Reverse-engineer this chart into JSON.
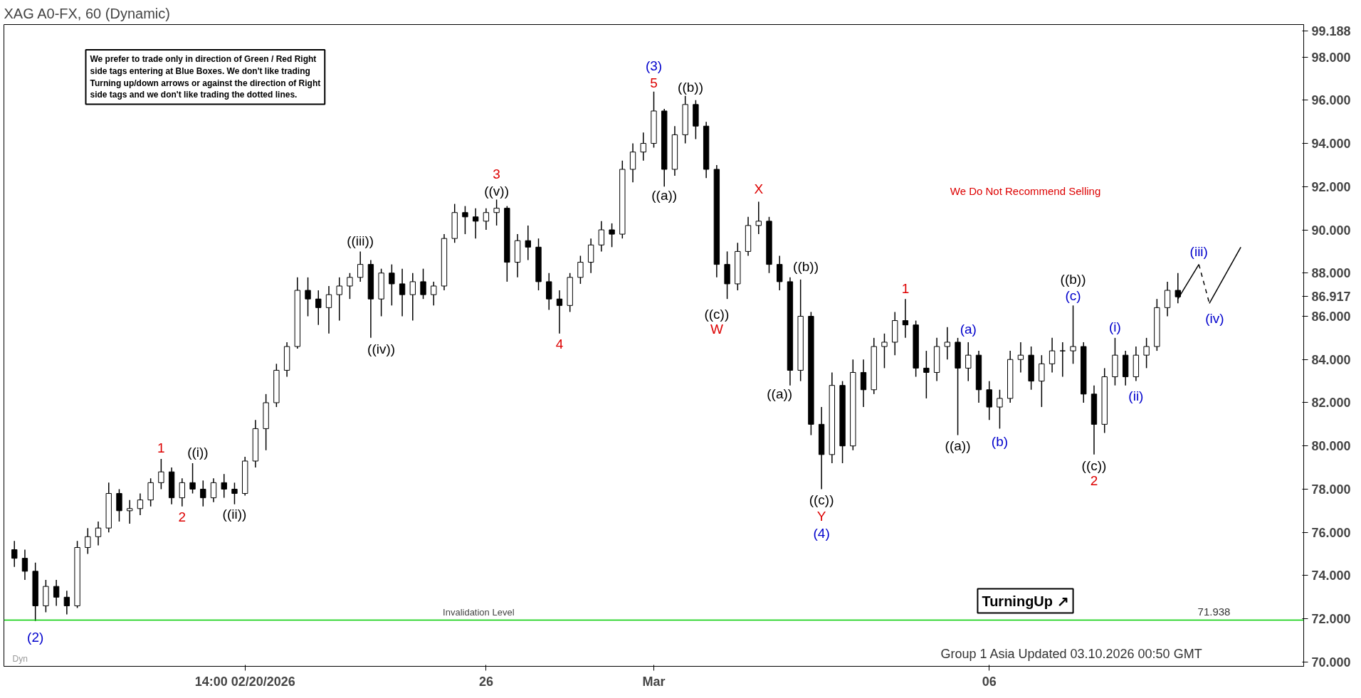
{
  "chart_data": {
    "type": "candlestick",
    "title": "XAG A0-FX, 60 (Dynamic)",
    "categories": [
      null,
      null,
      null,
      null,
      null,
      null,
      null,
      null,
      null,
      null,
      null,
      null,
      null,
      null,
      null,
      null,
      null,
      null,
      null,
      null,
      null,
      null,
      "14:00 02/20/2026",
      null,
      null,
      null,
      null,
      null,
      null,
      null,
      null,
      null,
      null,
      null,
      null,
      null,
      null,
      null,
      null,
      null,
      null,
      null,
      null,
      null,
      null,
      "26",
      null,
      null,
      null,
      null,
      null,
      null,
      null,
      null,
      null,
      null,
      null,
      null,
      null,
      null,
      null,
      "Mar",
      null,
      null,
      null,
      null,
      null,
      null,
      null,
      null,
      null,
      null,
      null,
      null,
      null,
      null,
      null,
      null,
      null,
      null,
      null,
      null,
      null,
      null,
      null,
      null,
      null,
      null,
      null,
      null,
      null,
      null,
      null,
      "06",
      null,
      null,
      null,
      null,
      null,
      null,
      null,
      null,
      null,
      null,
      null,
      null,
      null,
      null,
      null,
      null,
      null,
      null,
      null,
      null,
      null,
      null,
      null,
      null,
      null,
      null,
      null,
      null,
      null
    ],
    "ohlc": [
      [
        75.2,
        75.6,
        74.4,
        74.8
      ],
      [
        74.8,
        75.2,
        73.8,
        74.2
      ],
      [
        74.2,
        74.6,
        71.9,
        72.6
      ],
      [
        72.6,
        73.8,
        72.3,
        73.5
      ],
      [
        73.5,
        73.8,
        72.6,
        73.0
      ],
      [
        73.0,
        73.3,
        72.2,
        72.6
      ],
      [
        72.6,
        75.6,
        72.5,
        75.3
      ],
      [
        75.3,
        76.2,
        75.0,
        75.8
      ],
      [
        75.8,
        76.5,
        75.4,
        76.2
      ],
      [
        76.2,
        78.3,
        76.0,
        77.8
      ],
      [
        77.8,
        78.0,
        76.5,
        77.0
      ],
      [
        77.0,
        77.5,
        76.4,
        77.1
      ],
      [
        77.1,
        77.8,
        76.8,
        77.5
      ],
      [
        77.5,
        78.5,
        77.2,
        78.3
      ],
      [
        78.3,
        79.4,
        78.0,
        78.8
      ],
      [
        78.8,
        79.0,
        77.3,
        77.6
      ],
      [
        77.6,
        78.5,
        77.2,
        78.3
      ],
      [
        78.3,
        79.2,
        77.8,
        78.0
      ],
      [
        78.0,
        78.4,
        77.2,
        77.6
      ],
      [
        77.6,
        78.5,
        77.4,
        78.3
      ],
      [
        78.3,
        78.7,
        77.6,
        78.0
      ],
      [
        78.0,
        78.3,
        77.3,
        77.8
      ],
      [
        77.8,
        79.5,
        77.7,
        79.3
      ],
      [
        79.3,
        81.2,
        79.0,
        80.8
      ],
      [
        80.8,
        82.4,
        79.8,
        82.0
      ],
      [
        82.0,
        83.8,
        81.8,
        83.5
      ],
      [
        83.5,
        84.8,
        83.2,
        84.6
      ],
      [
        84.6,
        87.8,
        84.5,
        87.2
      ],
      [
        87.2,
        87.8,
        86.0,
        86.8
      ],
      [
        86.8,
        87.2,
        85.6,
        86.4
      ],
      [
        86.4,
        87.4,
        85.2,
        87.0
      ],
      [
        87.0,
        87.8,
        85.8,
        87.4
      ],
      [
        87.4,
        88.0,
        86.8,
        87.8
      ],
      [
        87.8,
        89.0,
        87.6,
        88.4
      ],
      [
        88.4,
        88.6,
        85.0,
        86.8
      ],
      [
        86.8,
        88.2,
        86.0,
        88.0
      ],
      [
        88.0,
        88.4,
        86.5,
        87.5
      ],
      [
        87.5,
        88.2,
        86.0,
        87.0
      ],
      [
        87.0,
        88.0,
        85.8,
        87.6
      ],
      [
        87.6,
        88.2,
        86.8,
        87.0
      ],
      [
        87.0,
        87.6,
        86.5,
        87.4
      ],
      [
        87.4,
        89.8,
        87.2,
        89.6
      ],
      [
        89.6,
        91.2,
        89.4,
        90.8
      ],
      [
        90.8,
        91.1,
        89.8,
        90.6
      ],
      [
        90.6,
        91.0,
        89.6,
        90.4
      ],
      [
        90.4,
        91.0,
        90.0,
        90.8
      ],
      [
        90.8,
        91.4,
        90.2,
        91.0
      ],
      [
        91.0,
        91.1,
        87.6,
        88.5
      ],
      [
        88.5,
        89.8,
        87.8,
        89.5
      ],
      [
        89.5,
        90.2,
        88.6,
        89.2
      ],
      [
        89.2,
        89.6,
        87.2,
        87.6
      ],
      [
        87.6,
        88.0,
        86.3,
        86.8
      ],
      [
        86.8,
        87.2,
        85.2,
        86.5
      ],
      [
        86.5,
        88.0,
        86.2,
        87.8
      ],
      [
        87.8,
        88.8,
        87.5,
        88.5
      ],
      [
        88.5,
        89.6,
        88.0,
        89.3
      ],
      [
        89.3,
        90.4,
        89.0,
        90.0
      ],
      [
        90.0,
        90.3,
        89.2,
        89.8
      ],
      [
        89.8,
        93.2,
        89.6,
        92.8
      ],
      [
        92.8,
        94.0,
        92.2,
        93.6
      ],
      [
        93.6,
        94.5,
        93.2,
        94.0
      ],
      [
        94.0,
        96.4,
        93.8,
        95.5
      ],
      [
        95.5,
        95.6,
        92.0,
        92.8
      ],
      [
        92.8,
        94.8,
        92.5,
        94.4
      ],
      [
        94.4,
        96.2,
        94.0,
        95.8
      ],
      [
        95.8,
        96.0,
        94.2,
        94.8
      ],
      [
        94.8,
        95.0,
        92.4,
        92.8
      ],
      [
        92.8,
        93.0,
        87.8,
        88.4
      ],
      [
        88.4,
        89.0,
        86.8,
        87.5
      ],
      [
        87.5,
        89.4,
        87.2,
        89.0
      ],
      [
        89.0,
        90.6,
        88.8,
        90.2
      ],
      [
        90.2,
        91.3,
        89.8,
        90.4
      ],
      [
        90.4,
        90.6,
        88.0,
        88.4
      ],
      [
        88.4,
        88.8,
        87.2,
        87.6
      ],
      [
        87.6,
        87.8,
        82.8,
        83.5
      ],
      [
        83.5,
        87.7,
        83.0,
        86.0
      ],
      [
        86.0,
        86.2,
        80.5,
        81.0
      ],
      [
        81.0,
        81.8,
        78.0,
        79.6
      ],
      [
        79.6,
        83.4,
        79.2,
        82.8
      ],
      [
        82.8,
        83.0,
        79.2,
        80.0
      ],
      [
        80.0,
        84.0,
        79.8,
        83.4
      ],
      [
        83.4,
        84.0,
        81.8,
        82.6
      ],
      [
        82.6,
        85.0,
        82.4,
        84.6
      ],
      [
        84.6,
        85.2,
        83.6,
        84.8
      ],
      [
        84.8,
        86.2,
        84.2,
        85.8
      ],
      [
        85.8,
        86.8,
        85.0,
        85.6
      ],
      [
        85.6,
        85.8,
        83.2,
        83.6
      ],
      [
        83.6,
        84.4,
        82.2,
        83.4
      ],
      [
        83.4,
        85.0,
        83.0,
        84.6
      ],
      [
        84.6,
        85.5,
        84.0,
        84.8
      ],
      [
        84.8,
        85.0,
        80.5,
        83.6
      ],
      [
        83.6,
        84.8,
        83.0,
        84.2
      ],
      [
        84.2,
        84.4,
        82.0,
        82.6
      ],
      [
        82.6,
        83.0,
        81.2,
        81.8
      ],
      [
        81.8,
        82.6,
        80.8,
        82.2
      ],
      [
        82.2,
        84.4,
        82.0,
        84.0
      ],
      [
        84.0,
        84.8,
        83.4,
        84.2
      ],
      [
        84.2,
        84.6,
        82.6,
        83.0
      ],
      [
        83.0,
        84.2,
        81.8,
        83.8
      ],
      [
        83.8,
        85.0,
        83.4,
        84.4
      ],
      [
        84.4,
        84.8,
        83.2,
        84.4
      ],
      [
        84.4,
        86.5,
        83.8,
        84.6
      ],
      [
        84.6,
        84.8,
        82.0,
        82.4
      ],
      [
        82.4,
        82.8,
        79.6,
        81.0
      ],
      [
        81.0,
        83.6,
        80.6,
        83.2
      ],
      [
        83.2,
        85.0,
        82.8,
        84.2
      ],
      [
        84.2,
        84.4,
        82.8,
        83.2
      ],
      [
        83.2,
        84.6,
        83.0,
        84.2
      ],
      [
        84.2,
        85.0,
        83.6,
        84.6
      ],
      [
        84.6,
        86.8,
        84.4,
        86.4
      ],
      [
        86.4,
        87.6,
        86.0,
        87.2
      ],
      [
        87.2,
        88.0,
        86.6,
        86.9
      ],
      null,
      null,
      null,
      null,
      null,
      null,
      null,
      null,
      null,
      null,
      null
    ],
    "color": "#000000",
    "series": [
      {
        "type": "line",
        "color": "#000000",
        "line_style": "solid",
        "values": [
          null,
          null,
          null,
          null,
          null,
          null,
          null,
          null,
          null,
          null,
          null,
          null,
          null,
          null,
          null,
          null,
          null,
          null,
          null,
          null,
          null,
          null,
          null,
          null,
          null,
          null,
          null,
          null,
          null,
          null,
          null,
          null,
          null,
          null,
          null,
          null,
          null,
          null,
          null,
          null,
          null,
          null,
          null,
          null,
          null,
          null,
          null,
          null,
          null,
          null,
          null,
          null,
          null,
          null,
          null,
          null,
          null,
          null,
          null,
          null,
          null,
          null,
          null,
          null,
          null,
          null,
          null,
          null,
          null,
          null,
          null,
          null,
          null,
          null,
          null,
          null,
          null,
          null,
          null,
          null,
          null,
          null,
          null,
          null,
          null,
          null,
          null,
          null,
          null,
          null,
          null,
          null,
          null,
          null,
          null,
          null,
          null,
          null,
          null,
          null,
          null,
          null,
          null,
          null,
          null,
          null,
          null,
          null,
          null,
          null,
          null,
          86.8,
          null,
          88.4,
          null,
          null,
          null,
          null,
          null,
          null,
          null,
          null,
          null
        ]
      },
      {
        "type": "line",
        "color": "#000000",
        "line_style": "dashed",
        "values": [
          null,
          null,
          null,
          null,
          null,
          null,
          null,
          null,
          null,
          null,
          null,
          null,
          null,
          null,
          null,
          null,
          null,
          null,
          null,
          null,
          null,
          null,
          null,
          null,
          null,
          null,
          null,
          null,
          null,
          null,
          null,
          null,
          null,
          null,
          null,
          null,
          null,
          null,
          null,
          null,
          null,
          null,
          null,
          null,
          null,
          null,
          null,
          null,
          null,
          null,
          null,
          null,
          null,
          null,
          null,
          null,
          null,
          null,
          null,
          null,
          null,
          null,
          null,
          null,
          null,
          null,
          null,
          null,
          null,
          null,
          null,
          null,
          null,
          null,
          null,
          null,
          null,
          null,
          null,
          null,
          null,
          null,
          null,
          null,
          null,
          null,
          null,
          null,
          null,
          null,
          null,
          null,
          null,
          null,
          null,
          null,
          null,
          null,
          null,
          null,
          null,
          null,
          null,
          null,
          null,
          null,
          null,
          null,
          null,
          null,
          null,
          null,
          null,
          88.4,
          86.6,
          null,
          null,
          null,
          null,
          null,
          null,
          null,
          null
        ]
      },
      {
        "type": "line",
        "color": "#000000",
        "line_style": "solid",
        "values": [
          null,
          null,
          null,
          null,
          null,
          null,
          null,
          null,
          null,
          null,
          null,
          null,
          null,
          null,
          null,
          null,
          null,
          null,
          null,
          null,
          null,
          null,
          null,
          null,
          null,
          null,
          null,
          null,
          null,
          null,
          null,
          null,
          null,
          null,
          null,
          null,
          null,
          null,
          null,
          null,
          null,
          null,
          null,
          null,
          null,
          null,
          null,
          null,
          null,
          null,
          null,
          null,
          null,
          null,
          null,
          null,
          null,
          null,
          null,
          null,
          null,
          null,
          null,
          null,
          null,
          null,
          null,
          null,
          null,
          null,
          null,
          null,
          null,
          null,
          null,
          null,
          null,
          null,
          null,
          null,
          null,
          null,
          null,
          null,
          null,
          null,
          null,
          null,
          null,
          null,
          null,
          null,
          null,
          null,
          null,
          null,
          null,
          null,
          null,
          null,
          null,
          null,
          null,
          null,
          null,
          null,
          null,
          null,
          null,
          null,
          null,
          null,
          null,
          null,
          86.6,
          null,
          null,
          89.2,
          null,
          null,
          null,
          null,
          null
        ]
      }
    ],
    "ylim": [
      69.8,
      99.5
    ],
    "yticks": [
      {
        "value": 70,
        "label": "70.000"
      },
      {
        "value": 72,
        "label": "72.000"
      },
      {
        "value": 74,
        "label": "74.000"
      },
      {
        "value": 76,
        "label": "76.000"
      },
      {
        "value": 78,
        "label": "78.000"
      },
      {
        "value": 80,
        "label": "80.000"
      },
      {
        "value": 82,
        "label": "82.000"
      },
      {
        "value": 84,
        "label": "84.000"
      },
      {
        "value": 86,
        "label": "86.000"
      },
      {
        "value": 86.917,
        "label": "86.917"
      },
      {
        "value": 88,
        "label": "88.000"
      },
      {
        "value": 90,
        "label": "90.000"
      },
      {
        "value": 92,
        "label": "92.000"
      },
      {
        "value": 94,
        "label": "94.000"
      },
      {
        "value": 96,
        "label": "96.000"
      },
      {
        "value": 98,
        "label": "98.000"
      },
      {
        "value": 99.188,
        "label": "99.188"
      }
    ],
    "ref_lines": [
      {
        "axis": "y",
        "value": 71.938,
        "label": "Invalidation Level",
        "color": "#00cc00"
      }
    ],
    "annotations": [
      "We prefer to trade only in direction of Green / Red Right\nside tags entering at Blue Boxes. We don't like trading\nTurning up/down arrows or against the direction of Right\nside tags and we don't like trading the dotted lines.",
      "We Do Not Recommend Selling",
      "TurningUp ↗",
      "Group 1 Asia Updated 03.10.2026 00:50 GMT",
      "Dyn",
      "71.938",
      "(2)",
      "1",
      "((i))",
      "2",
      "((ii))",
      "((iii))",
      "((iv))",
      "3",
      "((v))",
      "4",
      "(3)",
      "5",
      "((b))",
      "((a))",
      "X",
      "((c))",
      "W",
      "((b))",
      "((a))",
      "((c))",
      "Y",
      "(4)",
      "1",
      "(a)",
      "((a))",
      "(b)",
      "((b))",
      "(c)",
      "(i)",
      "(ii)",
      "((c))",
      "2",
      "(iii)",
      "(iv)"
    ]
  }
}
